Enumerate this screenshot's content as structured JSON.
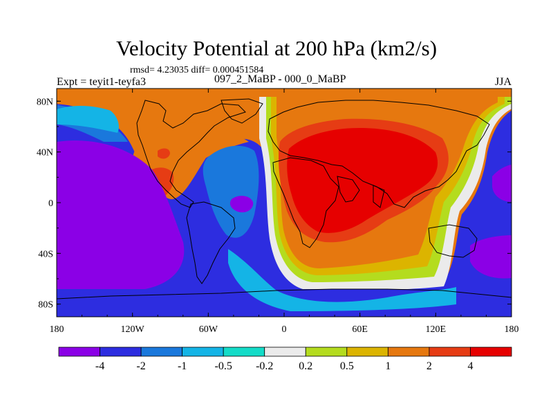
{
  "plot": {
    "title": "Velocity Potential at 200 hPa (km2/s)",
    "stats": "rmsd= 4.23035 diff= 0.000451584",
    "left_label": "Expt = teyit1-teyfa3",
    "center_label": "097_2_MaBP - 000_0_MaBP",
    "right_label": "JJA"
  },
  "chart_data": {
    "type": "heatmap",
    "title": "Velocity Potential at 200 hPa (km2/s)",
    "units": "km2/s",
    "x_axis": {
      "range": [
        -180,
        180
      ],
      "ticks": [
        -180,
        -120,
        -60,
        0,
        60,
        120,
        180
      ],
      "tick_labels": [
        "180",
        "120W",
        "60W",
        "0",
        "60E",
        "120E",
        "180"
      ]
    },
    "y_axis": {
      "range": [
        -90,
        90
      ],
      "ticks": [
        80,
        40,
        0,
        -40,
        -80
      ],
      "tick_labels": [
        "80N",
        "40N",
        "0",
        "40S",
        "80S"
      ]
    },
    "colorbar": {
      "labels": [
        "-4",
        "-2",
        "-1",
        "-0.5",
        "-0.2",
        "0.2",
        "0.5",
        "1",
        "2",
        "4"
      ],
      "colors": [
        "#8B00E6",
        "#2D2DE0",
        "#1A78DC",
        "#14B4E6",
        "#14DCC8",
        "#EBEBEB",
        "#B4DC1E",
        "#DCB400",
        "#E6780F",
        "#E63C14",
        "#E60000"
      ]
    },
    "features": [
      {
        "name": "global-maximum",
        "lon": 30,
        "lat": 20,
        "level": ">4"
      },
      {
        "name": "pacific-minimum",
        "lon": -140,
        "lat": 0,
        "level": "<-4"
      },
      {
        "name": "southwest-pacific-minimum",
        "lon": 160,
        "lat": -30,
        "level": "<-4"
      },
      {
        "name": "atlantic-minimum",
        "lon": -35,
        "lat": 0,
        "level": "-4 to -2"
      },
      {
        "name": "north-america-positive",
        "lon": -100,
        "lat": 20,
        "level": "2 to 4"
      }
    ]
  }
}
